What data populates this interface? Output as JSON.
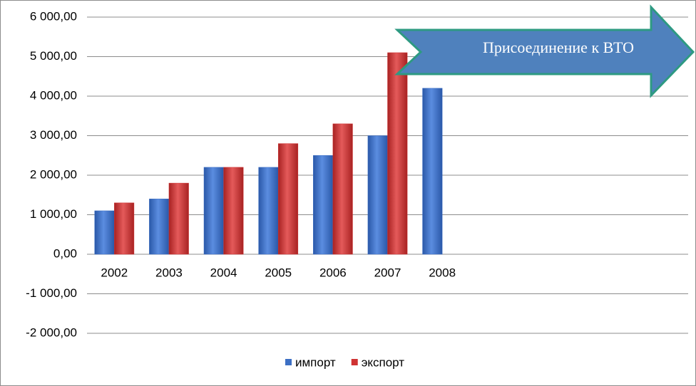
{
  "chart_data": {
    "type": "bar",
    "categories": [
      "2002",
      "2003",
      "2004",
      "2005",
      "2006",
      "2007",
      "2008",
      null,
      null,
      null,
      null
    ],
    "series": [
      {
        "name": "импорт",
        "color": "#3c6fc4",
        "values": [
          1100,
          1400,
          2200,
          2200,
          2500,
          3000,
          4200,
          null,
          null,
          null,
          null
        ]
      },
      {
        "name": "экспорт",
        "color": "#cf3232",
        "values": [
          1300,
          1800,
          2200,
          2800,
          3300,
          5100,
          null,
          null,
          null,
          null,
          null
        ]
      }
    ],
    "ylim": [
      -2000,
      6000
    ],
    "yticks": [
      {
        "value": -2000,
        "label": "-2 000,00"
      },
      {
        "value": -1000,
        "label": "-1 000,00"
      },
      {
        "value": 0,
        "label": "0,00"
      },
      {
        "value": 1000,
        "label": "1 000,00"
      },
      {
        "value": 2000,
        "label": "2 000,00"
      },
      {
        "value": 3000,
        "label": "3 000,00"
      },
      {
        "value": 4000,
        "label": "4 000,00"
      },
      {
        "value": 5000,
        "label": "5 000,00"
      },
      {
        "value": 6000,
        "label": "6 000,00"
      }
    ],
    "grid": true,
    "legend": "bottom",
    "annotation": "Присоединение к ВТО"
  }
}
